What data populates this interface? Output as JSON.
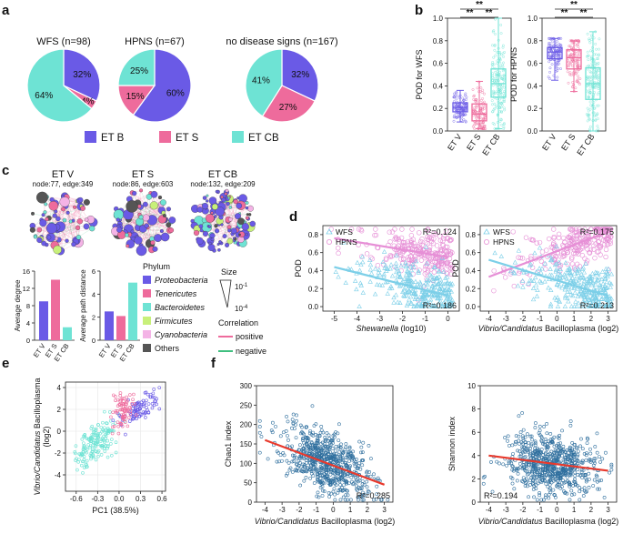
{
  "colors": {
    "et_b": "#6a5ae6",
    "et_s": "#ee6b9c",
    "et_cb": "#6ee3d4",
    "wfs": "#7ccfe8",
    "hpns": "#e68fd6",
    "scatter_blue": "#2f6f9e",
    "regression": "#e8392c",
    "grid": "#e6e6e6"
  },
  "panels": {
    "a": {
      "label": "a",
      "legend": [
        {
          "name": "ET B",
          "color": "#6a5ae6"
        },
        {
          "name": "ET S",
          "color": "#ee6b9c"
        },
        {
          "name": "ET CB",
          "color": "#6ee3d4"
        }
      ]
    },
    "b": {
      "label": "b"
    },
    "c": {
      "label": "c",
      "networks": [
        {
          "title": "ET V",
          "stats": "node:77, edge:349"
        },
        {
          "title": "ET S",
          "stats": "node:86, edge:603"
        },
        {
          "title": "ET CB",
          "stats": "node:132, edge:209"
        }
      ],
      "phylum_title": "Phylum",
      "phyla": [
        {
          "name": "Proteobacteria",
          "color": "#6a5ae6"
        },
        {
          "name": "Tenericutes",
          "color": "#ee6b9c"
        },
        {
          "name": "Bacteroidetes",
          "color": "#6ee3d4"
        },
        {
          "name": "Firmicutes",
          "color": "#c8f07a"
        },
        {
          "name": "Cyanobacteria",
          "color": "#f4b3e6"
        },
        {
          "name": "Others",
          "color": "#555555"
        }
      ],
      "size_title": "Size",
      "size_top": "10",
      "size_top_exp": "-1",
      "size_bottom": "10",
      "size_bottom_exp": "-4",
      "correlation_title": "Correlation",
      "corr_positive": "positive",
      "corr_negative": "negative",
      "corr_positive_color": "#ee6b9c",
      "corr_negative_color": "#3fbf7f"
    },
    "d": {
      "label": "d"
    },
    "e": {
      "label": "e"
    },
    "f": {
      "label": "f"
    }
  },
  "chart_data": [
    {
      "id": "a",
      "type": "pie",
      "pies": [
        {
          "title": "WFS (n=98)",
          "labels": [
            "ET B",
            "ET S",
            "ET CB"
          ],
          "values": [
            32,
            4,
            64
          ],
          "value_labels": [
            "32%",
            "4%",
            "64%"
          ]
        },
        {
          "title": "HPNS (n=67)",
          "labels": [
            "ET B",
            "ET S",
            "ET CB"
          ],
          "values": [
            60,
            15,
            25
          ],
          "value_labels": [
            "60%",
            "15%",
            "25%"
          ]
        },
        {
          "title": "no disease signs (n=167)",
          "labels": [
            "ET B",
            "ET S",
            "ET CB"
          ],
          "values": [
            32,
            27,
            41
          ],
          "value_labels": [
            "32%",
            "27%",
            "41%"
          ]
        }
      ]
    },
    {
      "id": "b",
      "type": "box",
      "groups": [
        "ET V",
        "ET S",
        "ET CB"
      ],
      "significance": "**",
      "plots": [
        {
          "ylabel": "POD for WFS",
          "ylim": [
            0,
            1
          ],
          "yticks": [
            "0.0",
            "0.2",
            "0.4",
            "0.6",
            "0.8",
            "1.0"
          ],
          "boxes": [
            {
              "q1": 0.17,
              "median": 0.21,
              "q3": 0.25,
              "min": 0.08,
              "max": 0.36
            },
            {
              "q1": 0.09,
              "median": 0.15,
              "q3": 0.24,
              "min": 0.02,
              "max": 0.44
            },
            {
              "q1": 0.3,
              "median": 0.42,
              "q3": 0.55,
              "min": 0.02,
              "max": 1.0
            }
          ]
        },
        {
          "ylabel": "POD for HPNS",
          "ylim": [
            0,
            1
          ],
          "yticks": [
            "0.0",
            "0.2",
            "0.4",
            "0.6",
            "0.8",
            "1.0"
          ],
          "boxes": [
            {
              "q1": 0.64,
              "median": 0.7,
              "q3": 0.74,
              "min": 0.45,
              "max": 0.82
            },
            {
              "q1": 0.55,
              "median": 0.65,
              "q3": 0.72,
              "min": 0.35,
              "max": 0.8
            },
            {
              "q1": 0.28,
              "median": 0.42,
              "q3": 0.56,
              "min": 0.0,
              "max": 0.88
            }
          ]
        }
      ]
    },
    {
      "id": "c",
      "type": "bar",
      "categories": [
        "ET V",
        "ET S",
        "ET CB"
      ],
      "colors": [
        "#6a5ae6",
        "#ee6b9c",
        "#6ee3d4"
      ],
      "plots": [
        {
          "ylabel": "Average degree",
          "values": [
            9,
            14,
            3
          ],
          "ylim": [
            0,
            16
          ],
          "yticks": [
            "0",
            "4",
            "8",
            "12",
            "16"
          ]
        },
        {
          "ylabel": "Average path distance",
          "values": [
            2.5,
            2.1,
            5.0
          ],
          "ylim": [
            0,
            6
          ],
          "yticks": [
            "0",
            "2",
            "4",
            "6"
          ]
        }
      ]
    },
    {
      "id": "d",
      "type": "scatter",
      "legend": [
        "WFS",
        "HPNS"
      ],
      "ylabel": "POD",
      "plots": [
        {
          "xlabel_italic": "Shewanella",
          "xlabel_rest": " (log10)",
          "xlim": [
            -5.5,
            0.5
          ],
          "ylim": [
            -0.05,
            0.9
          ],
          "xticks": [
            "-5",
            "-4",
            "-3",
            "-2",
            "-1",
            "0"
          ],
          "yticks": [
            "0.0",
            "0.2",
            "0.4",
            "0.6",
            "0.8"
          ],
          "hpns_line": {
            "x": [
              -5,
              0
            ],
            "y": [
              0.76,
              0.55
            ]
          },
          "wfs_line": {
            "x": [
              -5,
              0
            ],
            "y": [
              0.44,
              0.12
            ]
          },
          "r2_hpns": "R²=0.124",
          "r2_wfs": "R²=0.186"
        },
        {
          "xlabel_italic": "Vibrio/Candidatus",
          "xlabel_rest": " Bacilloplasma (log2)",
          "xlim": [
            -4.5,
            3.5
          ],
          "ylim": [
            -0.05,
            0.9
          ],
          "xticks": [
            "-4",
            "-3",
            "-2",
            "-1",
            "0",
            "1",
            "2",
            "3"
          ],
          "yticks": [
            "0.0",
            "0.2",
            "0.4",
            "0.6",
            "0.8"
          ],
          "hpns_line": {
            "x": [
              -4,
              3
            ],
            "y": [
              0.33,
              0.83
            ]
          },
          "wfs_line": {
            "x": [
              -4,
              3
            ],
            "y": [
              0.52,
              0.12
            ]
          },
          "r2_hpns": "R²=0.175",
          "r2_wfs": "R²=0.213"
        }
      ]
    },
    {
      "id": "e",
      "type": "scatter",
      "xlabel": "PC1 (38.5%)",
      "ylabel_italic": "Vibrio/Candidatus",
      "ylabel_rest": " Bacilloplasma",
      "ylabel_line2": "(log2)",
      "xlim": [
        -0.75,
        0.65
      ],
      "ylim": [
        -5.5,
        4.5
      ],
      "xticks": [
        "-0.6",
        "-0.3",
        "0.0",
        "0.3",
        "0.6"
      ],
      "yticks": [
        "-4",
        "-2",
        "0",
        "2",
        "4"
      ],
      "series": [
        "ET B",
        "ET S",
        "ET CB"
      ]
    },
    {
      "id": "f",
      "type": "scatter",
      "xlabel_italic": "Vibrio/Candidatus",
      "xlabel_rest": " Bacilloplasma (log2)",
      "plots": [
        {
          "ylabel": "Chao1 index",
          "xlim": [
            -4.5,
            3.5
          ],
          "ylim": [
            0,
            300
          ],
          "xticks": [
            "-4",
            "-3",
            "-2",
            "-1",
            "0",
            "1",
            "2",
            "3"
          ],
          "yticks": [
            "0",
            "50",
            "100",
            "150",
            "200",
            "250",
            "300"
          ],
          "line": {
            "x": [
              -4,
              3
            ],
            "y": [
              160,
              45
            ]
          },
          "r2": "R²=0.285"
        },
        {
          "ylabel": "Shannon index",
          "xlim": [
            -4.5,
            3.5
          ],
          "ylim": [
            0,
            10
          ],
          "xticks": [
            "-4",
            "-3",
            "-2",
            "-1",
            "0",
            "1",
            "2",
            "3"
          ],
          "yticks": [
            "0",
            "2",
            "4",
            "6",
            "8",
            "10"
          ],
          "line": {
            "x": [
              -4,
              3
            ],
            "y": [
              4.0,
              2.7
            ]
          },
          "r2": "R²=0.194"
        }
      ]
    }
  ]
}
